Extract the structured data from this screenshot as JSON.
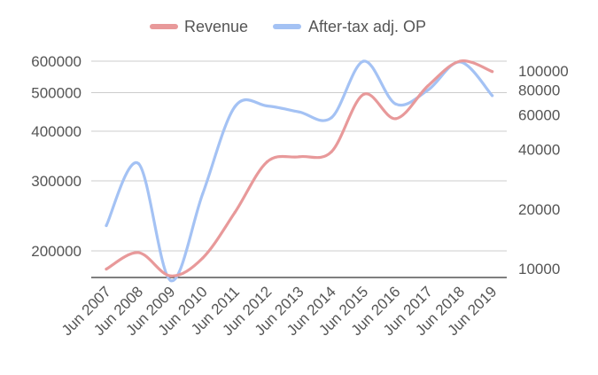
{
  "chart_data": {
    "type": "line",
    "title": "",
    "xlabel": "",
    "ylabel": "",
    "y2label": "",
    "scale_left": "log",
    "scale_right": "log",
    "grid": true,
    "legend_position": "top",
    "categories": [
      "Jun 2007",
      "Jun 2008",
      "Jun 2009",
      "Jun 2010",
      "Jun 2011",
      "Jun 2012",
      "Jun 2013",
      "Jun 2014",
      "Jun 2015",
      "Jun 2016",
      "Jun 2017",
      "Jun 2018",
      "Jun 2019"
    ],
    "left_axis": {
      "ticks": [
        200000,
        300000,
        400000,
        500000,
        600000
      ],
      "tick_labels": [
        "200000",
        "300000",
        "400000",
        "500000",
        "600000"
      ]
    },
    "right_axis": {
      "ticks": [
        10000,
        20000,
        40000,
        60000,
        80000,
        100000
      ],
      "tick_labels": [
        "10000",
        "20000",
        "40000",
        "60000",
        "80000",
        "100000"
      ]
    },
    "series": [
      {
        "name": "Revenue",
        "axis": "left",
        "color": "#e8999a",
        "values": [
          180000,
          198000,
          173000,
          192000,
          250000,
          335000,
          345000,
          355000,
          495000,
          430000,
          520000,
          600000,
          565000
        ]
      },
      {
        "name": "After-tax adj. OP",
        "axis": "right",
        "color": "#a4c2f4",
        "values": [
          16500,
          34000,
          8700,
          24000,
          66000,
          66500,
          62000,
          58000,
          112000,
          68000,
          80000,
          111000,
          75000
        ]
      }
    ]
  }
}
